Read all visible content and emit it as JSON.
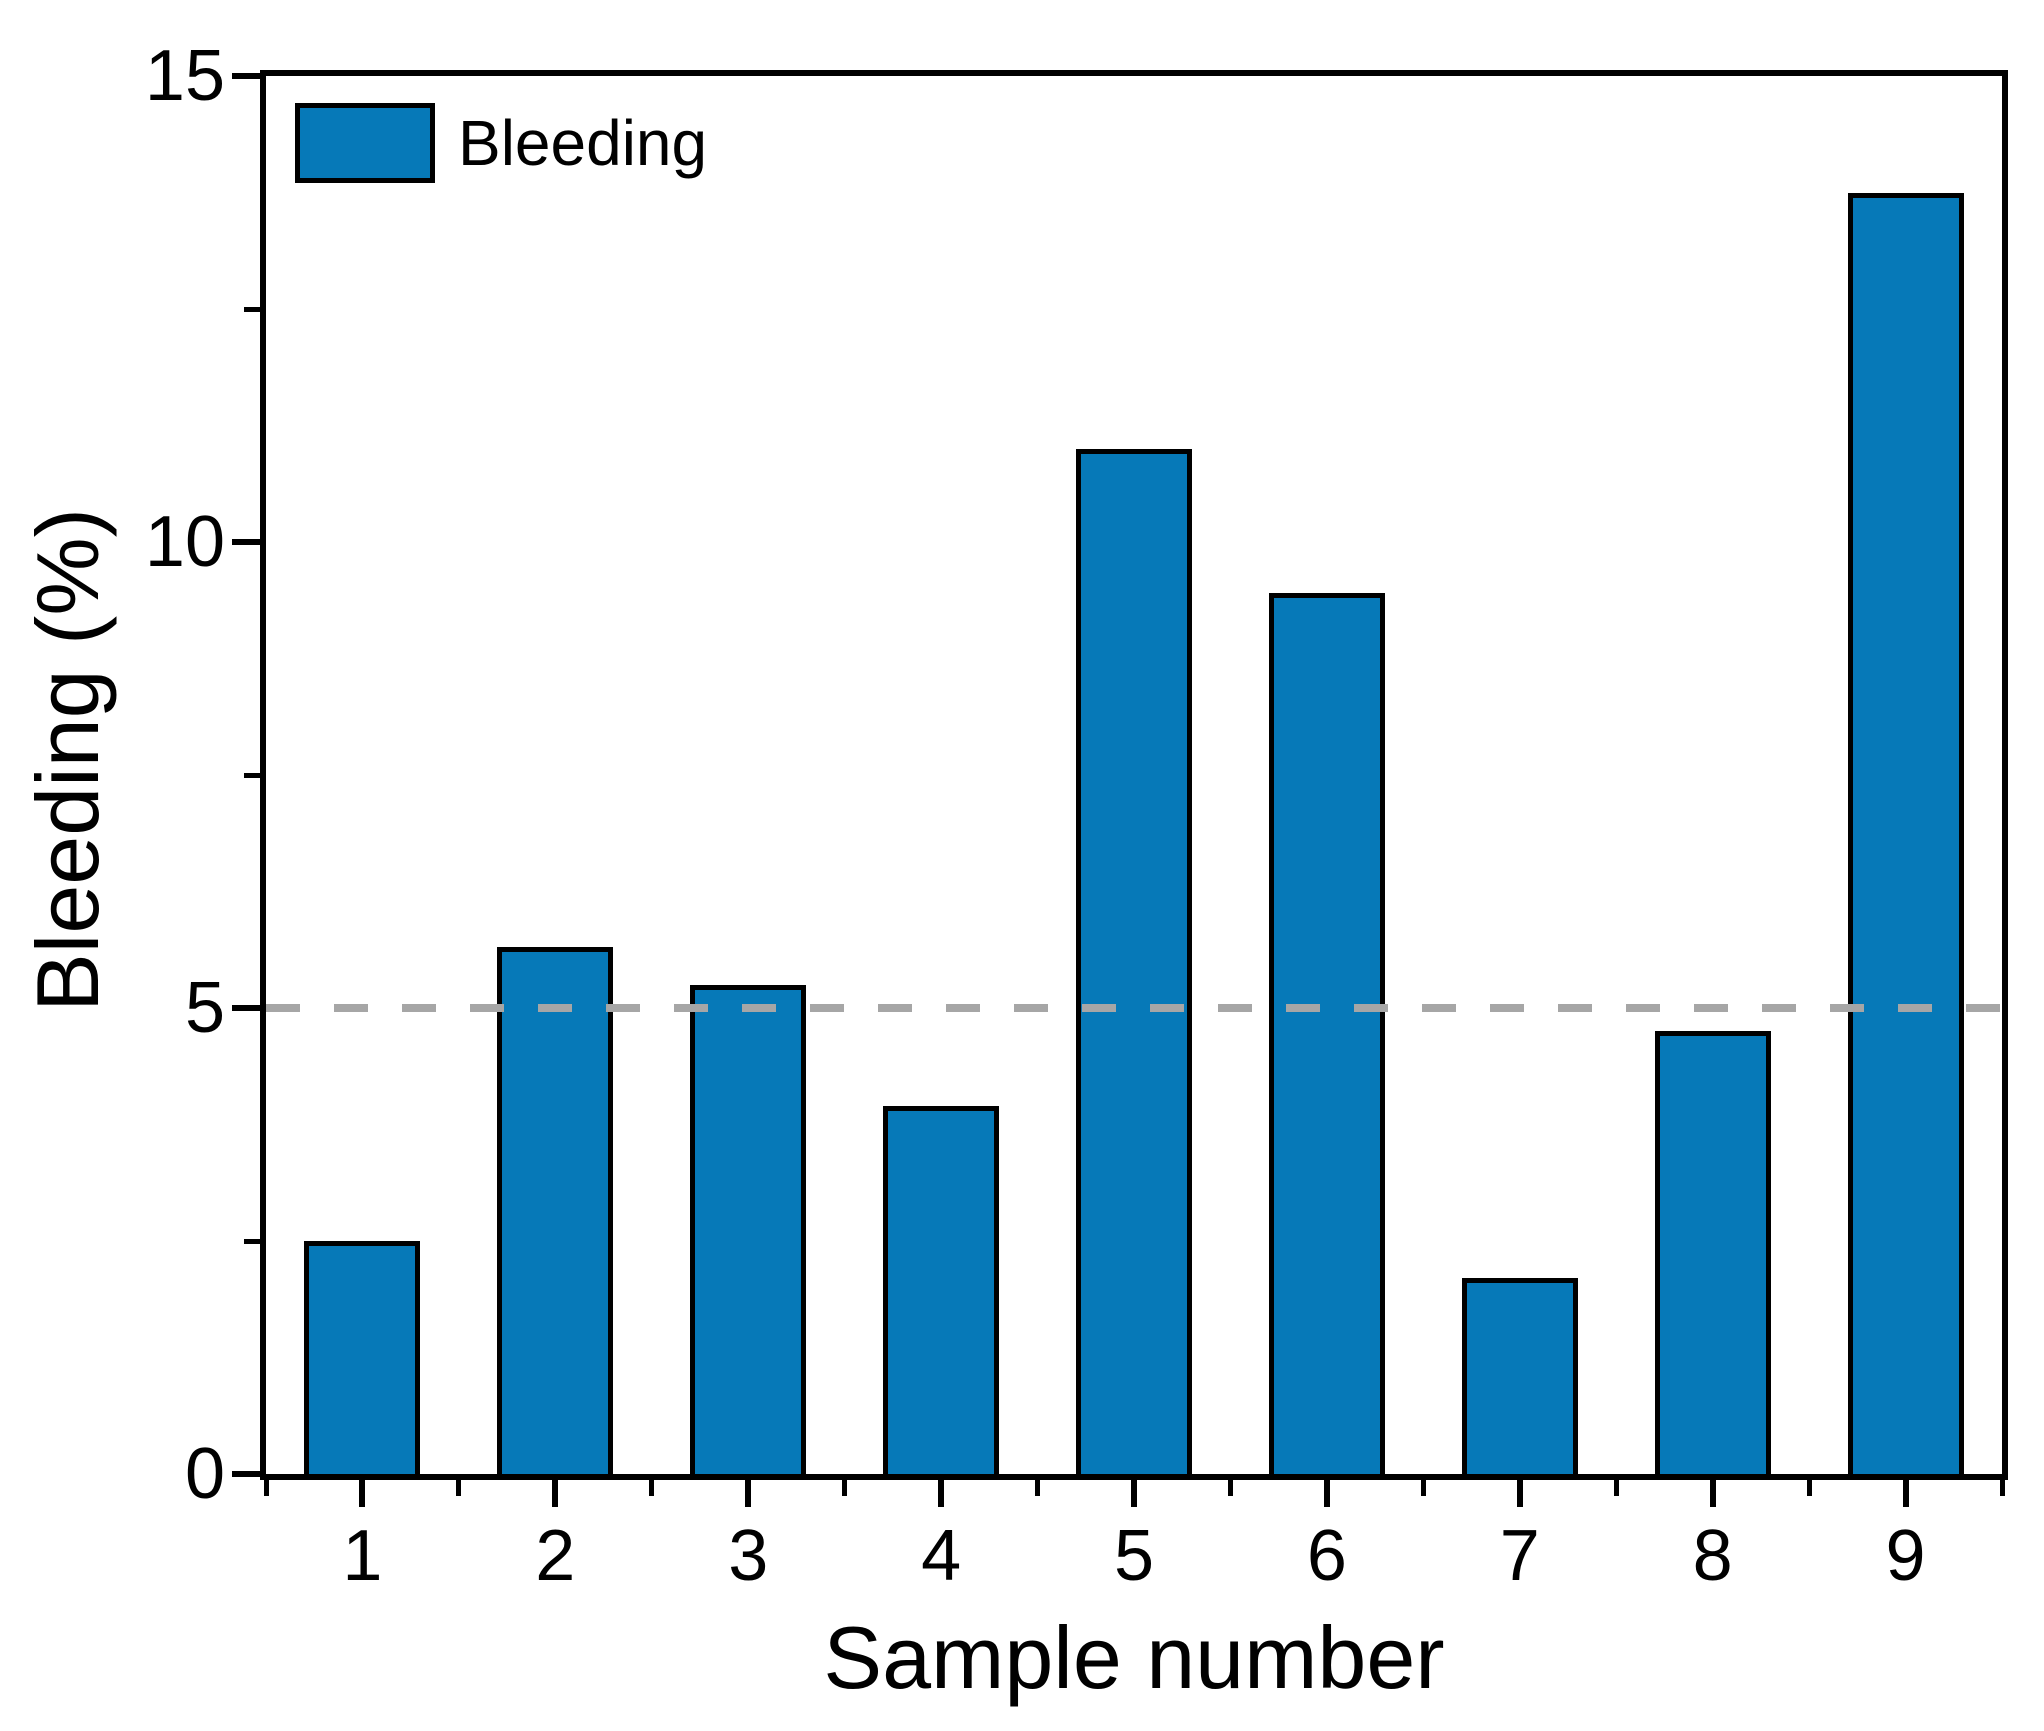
{
  "chart_data": {
    "type": "bar",
    "title": "",
    "xlabel": "Sample number",
    "ylabel": "Bleeding (%)",
    "categories": [
      "1",
      "2",
      "3",
      "4",
      "5",
      "6",
      "7",
      "8",
      "9"
    ],
    "series": [
      {
        "name": "Bleeding",
        "values": [
          2.5,
          5.65,
          5.25,
          3.95,
          11.0,
          9.45,
          2.1,
          4.75,
          13.75
        ]
      }
    ],
    "ylim": [
      0,
      15
    ],
    "yticks": [
      0,
      5,
      10,
      15
    ],
    "ytick_labels": [
      "0",
      "5",
      "10",
      "15"
    ],
    "yminor_ticks": [
      2.5,
      7.5,
      12.5
    ],
    "xminor_tick_positions": "category-boundaries",
    "reference_line": {
      "y": 5,
      "style": "dashed",
      "color": "#A6A6A6"
    },
    "bar_color": "#0679B8",
    "bar_border_color": "#000000",
    "legend": {
      "label": "Bleeding",
      "position": "top-left-inside"
    },
    "grid": false
  }
}
